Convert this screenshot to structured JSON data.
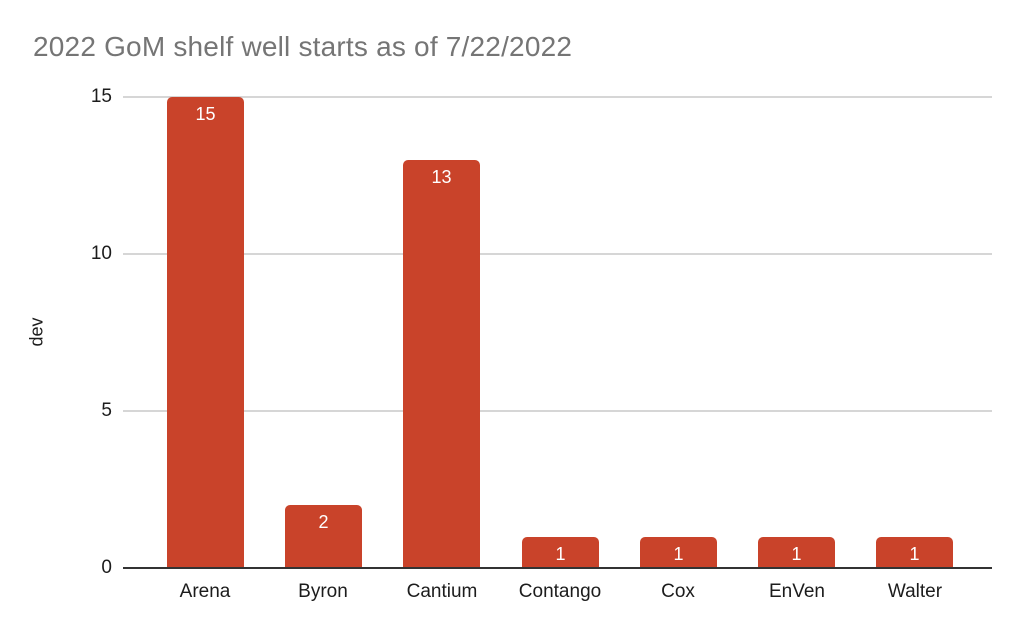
{
  "chart_data": {
    "type": "bar",
    "title": "2022 GoM shelf well starts as of 7/22/2022",
    "xlabel": "",
    "ylabel": "dev",
    "categories": [
      "Arena",
      "Byron",
      "Cantium",
      "Contango",
      "Cox",
      "EnVen",
      "Walter"
    ],
    "values": [
      15,
      2,
      13,
      1,
      1,
      1,
      1
    ],
    "ylim": [
      0,
      15
    ],
    "yticks": [
      0,
      5,
      10,
      15
    ],
    "grid": true,
    "legend_position": "none",
    "bar_color": "#C9432A",
    "value_label_color": "#FFFFFF",
    "title_color": "#757575",
    "axis_text_color": "#1C1C1C",
    "gridline_color": "#D6D6D6",
    "baseline_color": "#333333"
  }
}
